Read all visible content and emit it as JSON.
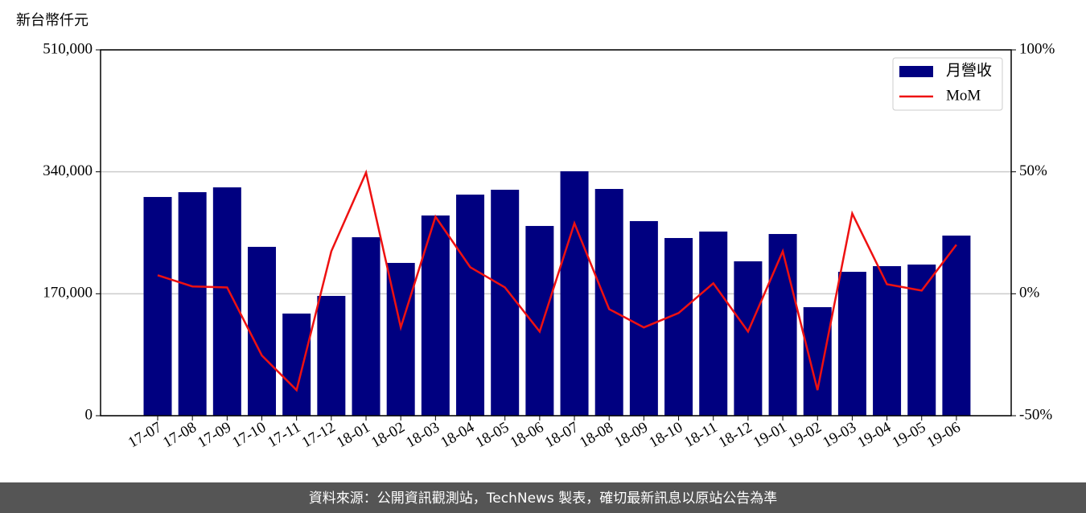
{
  "chart_data": {
    "type": "bar_line",
    "unit_label": "新台幣仟元",
    "categories": [
      "17-07",
      "17-08",
      "17-09",
      "17-10",
      "17-11",
      "17-12",
      "18-01",
      "18-02",
      "18-03",
      "18-04",
      "18-05",
      "18-06",
      "18-07",
      "18-08",
      "18-09",
      "18-10",
      "18-11",
      "18-12",
      "19-01",
      "19-02",
      "19-03",
      "19-04",
      "19-05",
      "19-06"
    ],
    "series": [
      {
        "name": "月營收",
        "color": "#000080",
        "kind": "bar",
        "values": [
          304900,
          311600,
          318300,
          235400,
          142400,
          167000,
          248800,
          213000,
          279100,
          308200,
          315000,
          264500,
          340700,
          316100,
          271300,
          247700,
          256700,
          215200,
          253300,
          151300,
          200600,
          208500,
          210700,
          251100
        ]
      },
      {
        "name": "MoM",
        "color": "#ee1111",
        "kind": "line",
        "axis": "y2",
        "values": [
          7.6,
          3.0,
          2.6,
          -25.3,
          -39.5,
          17.4,
          49.7,
          -13.8,
          31.6,
          10.9,
          2.6,
          -15.5,
          28.9,
          -6.3,
          -13.8,
          -7.9,
          4.3,
          -15.5,
          17.4,
          -39.5,
          32.9,
          3.9,
          1.3,
          20.1
        ]
      }
    ],
    "ylim": [
      0,
      510000
    ],
    "yticks": [
      0,
      {
        "value": 170000,
        "label": "170,000"
      },
      {
        "value": 340000,
        "label": "340,000"
      },
      {
        "value": 510000,
        "label": "510,000"
      }
    ],
    "y2lim": [
      -50,
      100
    ],
    "y2ticks": [
      {
        "value": -50,
        "label": "-50%"
      },
      {
        "value": 0,
        "label": "0%"
      },
      {
        "value": 50,
        "label": "50%"
      },
      {
        "value": 100,
        "label": "100%"
      }
    ],
    "grid": true,
    "legend": "upper right",
    "footer": "資料來源：公開資訊觀測站，TechNews 製表，確切最新訊息以原站公告為準"
  }
}
